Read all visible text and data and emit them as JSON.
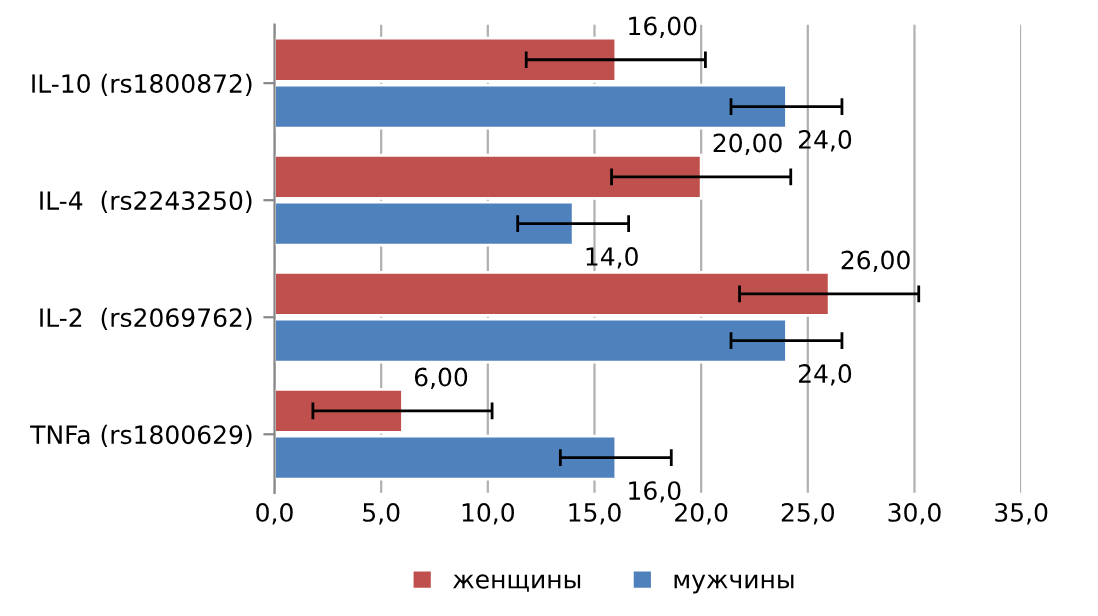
{
  "chart_data": {
    "type": "bar",
    "orientation": "horizontal",
    "categories": [
      "IL-10 (rs1800872)",
      "IL-4  (rs2243250)",
      "IL-2  (rs2069762)",
      "TNFa (rs1800629)"
    ],
    "series": [
      {
        "name": "женщины",
        "color": "#c0504d",
        "values": [
          16,
          20,
          26,
          6
        ],
        "errors": [
          4.2,
          4.2,
          4.2,
          4.2
        ],
        "value_labels": [
          "16,00",
          "20,00",
          "26,00",
          "6,00"
        ]
      },
      {
        "name": "мужчины",
        "color": "#4f81bd",
        "values": [
          24,
          14,
          24,
          16
        ],
        "errors": [
          2.6,
          2.6,
          2.6,
          2.6
        ],
        "value_labels": [
          "24,0",
          "14,0",
          "24,0",
          "16,0"
        ]
      }
    ],
    "xlim": [
      0,
      35
    ],
    "xticks": [
      {
        "value": 0,
        "label": "0,0"
      },
      {
        "value": 5,
        "label": "5,0"
      },
      {
        "value": 10,
        "label": "10,0"
      },
      {
        "value": 15,
        "label": "15,0"
      },
      {
        "value": 20,
        "label": "20,0"
      },
      {
        "value": 25,
        "label": "25,0"
      },
      {
        "value": 30,
        "label": "30,0"
      },
      {
        "value": 35,
        "label": "35,0"
      }
    ],
    "grid": "x",
    "legend": "bottom"
  }
}
